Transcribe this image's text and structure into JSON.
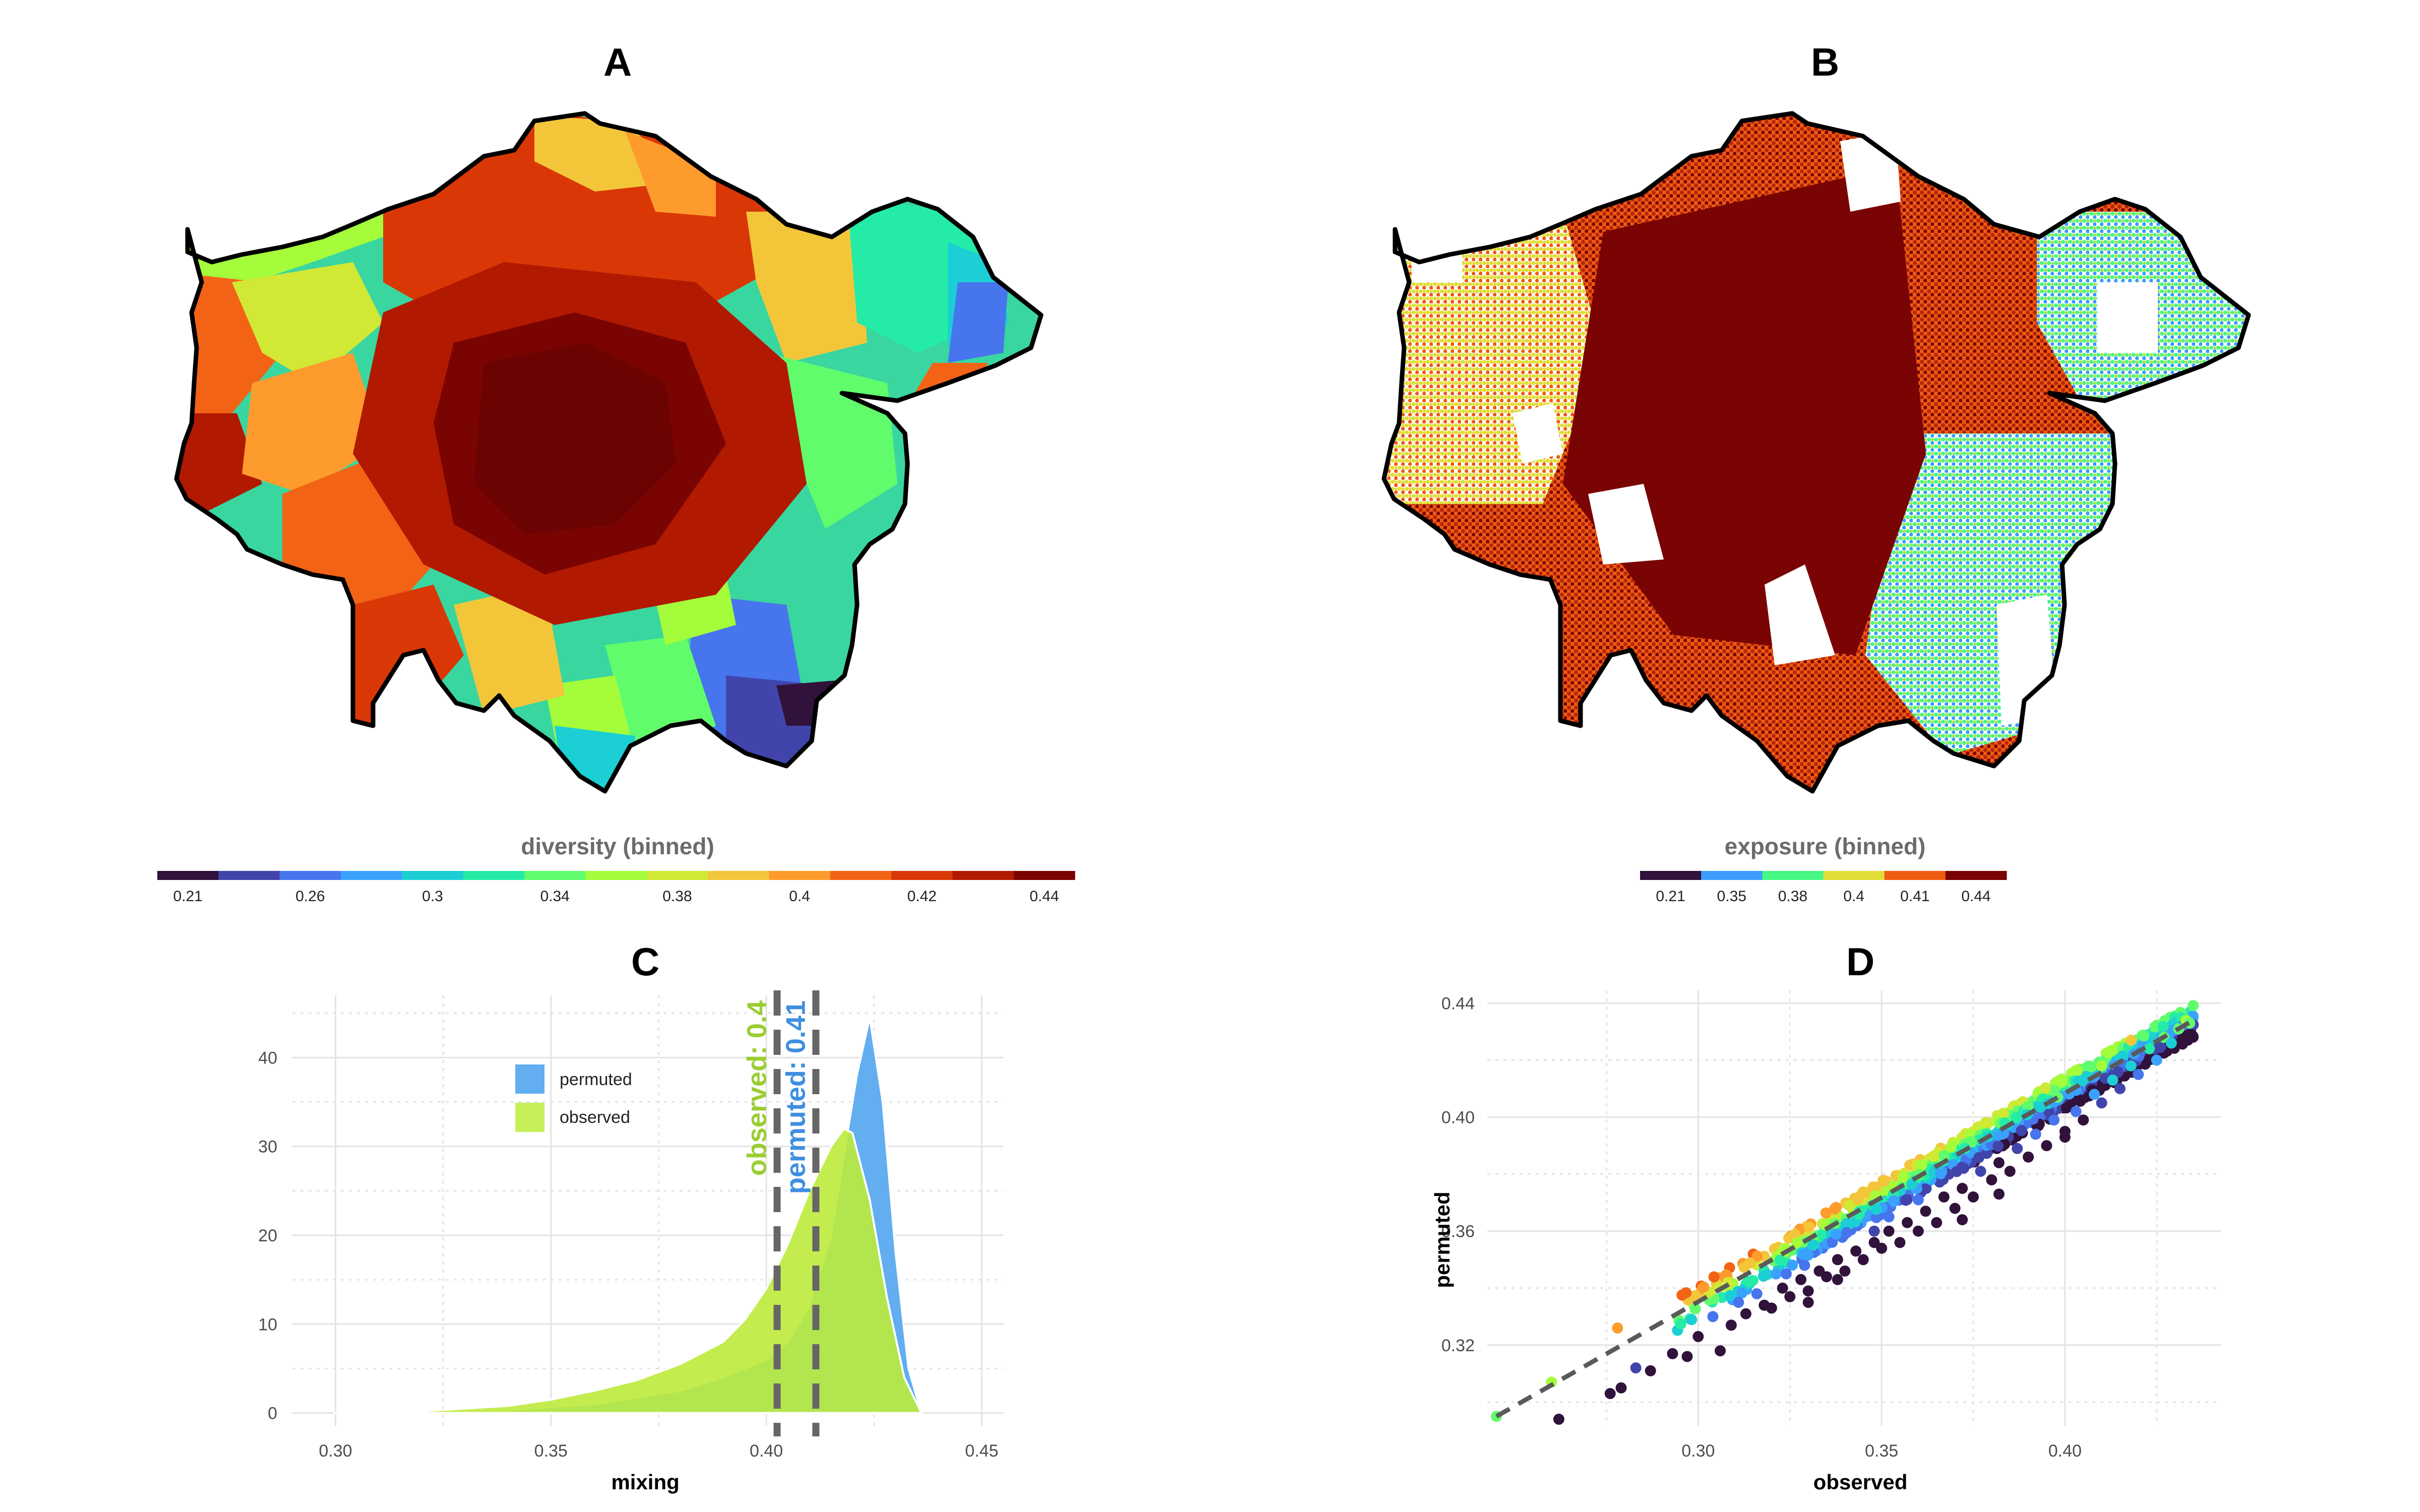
{
  "panels": {
    "A": {
      "title": "A",
      "legend_title": "diversity (binned)",
      "legend_ticks": [
        "0.21",
        "0.26",
        "0.3",
        "0.34",
        "0.38",
        "0.4",
        "0.42",
        "0.44"
      ],
      "legend_colors": [
        "#30123b",
        "#4145ab",
        "#4675ed",
        "#39a2fc",
        "#1bcfd4",
        "#24eca6",
        "#61fc6c",
        "#a4fc3b",
        "#d1e834",
        "#f3c63a",
        "#fe9b2d",
        "#f36315",
        "#d93806",
        "#b11901",
        "#7a0402"
      ]
    },
    "B": {
      "title": "B",
      "legend_title": "exposure (binned)",
      "legend_ticks": [
        "0.21",
        "0.35",
        "0.38",
        "0.4",
        "0.41",
        "0.44"
      ],
      "legend_colors": [
        "#30123b",
        "#3e9bfe",
        "#46f884",
        "#e1dd37",
        "#f05b12",
        "#7a0403"
      ]
    },
    "C": {
      "title": "C"
    },
    "D": {
      "title": "D"
    }
  },
  "chart_data": [
    {
      "type": "area",
      "panel": "C",
      "title": "",
      "xlabel": "mixing",
      "ylabel": "",
      "xlim": [
        0.29,
        0.455
      ],
      "ylim": [
        -1.5,
        47
      ],
      "x_ticks": [
        "0.30",
        "0.35",
        "0.40",
        "0.45"
      ],
      "y_ticks": [
        "0",
        "10",
        "20",
        "30",
        "40"
      ],
      "grid": true,
      "legend_position": "top-left",
      "series": [
        {
          "name": "permuted",
          "color": "#62aef0",
          "x": [
            0.3,
            0.32,
            0.34,
            0.36,
            0.38,
            0.39,
            0.4,
            0.405,
            0.41,
            0.415,
            0.418,
            0.421,
            0.424,
            0.427,
            0.43,
            0.433,
            0.436
          ],
          "y": [
            0,
            0.1,
            0.3,
            1.0,
            2.5,
            4,
            6,
            8,
            12,
            20,
            29,
            38,
            44.5,
            35,
            18,
            5,
            0
          ]
        },
        {
          "name": "observed",
          "color": "#bdeb3c",
          "x": [
            0.3,
            0.32,
            0.34,
            0.35,
            0.36,
            0.37,
            0.38,
            0.39,
            0.395,
            0.4,
            0.405,
            0.41,
            0.415,
            0.418,
            0.42,
            0.424,
            0.428,
            0.432,
            0.436
          ],
          "y": [
            0,
            0.2,
            0.8,
            1.5,
            2.5,
            3.7,
            5.5,
            8,
            10.5,
            14,
            19,
            25,
            30,
            32,
            31.5,
            24,
            13,
            4,
            0
          ]
        }
      ],
      "vlines": [
        {
          "label": "observed: 0.4",
          "x": 0.4025,
          "color": "#9acd32"
        },
        {
          "label": "permuted: 0.41",
          "x": 0.4115,
          "color": "#3f8fe0"
        }
      ]
    },
    {
      "type": "scatter",
      "panel": "D",
      "title": "",
      "xlabel": "observed",
      "ylabel": "permuted",
      "xlim": [
        0.2425,
        0.4425
      ],
      "ylim": [
        0.2915,
        0.4445
      ],
      "x_ticks": [
        "0.30",
        "0.35",
        "0.40"
      ],
      "y_ticks": [
        "0.32",
        "0.36",
        "0.40",
        "0.44"
      ],
      "grid": true,
      "reference_line": {
        "x": [
          0.245,
          0.435
        ],
        "y": [
          0.295,
          0.434
        ]
      },
      "points": [
        [
          0.245,
          0.295
        ],
        [
          0.26,
          0.307
        ],
        [
          0.262,
          0.294
        ],
        [
          0.278,
          0.326
        ],
        [
          0.283,
          0.312
        ],
        [
          0.276,
          0.303
        ],
        [
          0.279,
          0.305
        ],
        [
          0.287,
          0.311
        ],
        [
          0.293,
          0.317
        ],
        [
          0.297,
          0.316
        ],
        [
          0.3,
          0.323
        ],
        [
          0.304,
          0.33
        ],
        [
          0.306,
          0.318
        ],
        [
          0.309,
          0.327
        ],
        [
          0.311,
          0.335
        ],
        [
          0.313,
          0.331
        ],
        [
          0.316,
          0.338
        ],
        [
          0.318,
          0.334
        ],
        [
          0.32,
          0.333
        ],
        [
          0.323,
          0.34
        ],
        [
          0.325,
          0.337
        ],
        [
          0.328,
          0.343
        ],
        [
          0.33,
          0.339
        ],
        [
          0.333,
          0.346
        ],
        [
          0.335,
          0.344
        ],
        [
          0.338,
          0.35
        ],
        [
          0.34,
          0.346
        ],
        [
          0.343,
          0.353
        ],
        [
          0.345,
          0.35
        ],
        [
          0.348,
          0.356
        ],
        [
          0.35,
          0.354
        ],
        [
          0.352,
          0.36
        ],
        [
          0.355,
          0.356
        ],
        [
          0.357,
          0.363
        ],
        [
          0.36,
          0.36
        ],
        [
          0.362,
          0.367
        ],
        [
          0.365,
          0.363
        ],
        [
          0.367,
          0.372
        ],
        [
          0.37,
          0.368
        ],
        [
          0.372,
          0.375
        ],
        [
          0.375,
          0.372
        ],
        [
          0.377,
          0.381
        ],
        [
          0.38,
          0.378
        ],
        [
          0.382,
          0.384
        ],
        [
          0.385,
          0.381
        ],
        [
          0.387,
          0.389
        ],
        [
          0.39,
          0.386
        ],
        [
          0.392,
          0.394
        ],
        [
          0.395,
          0.39
        ],
        [
          0.397,
          0.399
        ],
        [
          0.4,
          0.395
        ],
        [
          0.403,
          0.402
        ],
        [
          0.405,
          0.399
        ],
        [
          0.408,
          0.408
        ],
        [
          0.41,
          0.405
        ],
        [
          0.413,
          0.413
        ],
        [
          0.415,
          0.41
        ],
        [
          0.418,
          0.418
        ],
        [
          0.42,
          0.415
        ],
        [
          0.423,
          0.424
        ],
        [
          0.425,
          0.42
        ],
        [
          0.427,
          0.428
        ],
        [
          0.429,
          0.426
        ],
        [
          0.431,
          0.431
        ],
        [
          0.433,
          0.434
        ],
        [
          0.434,
          0.433
        ],
        [
          0.4,
          0.393
        ],
        [
          0.382,
          0.373
        ],
        [
          0.372,
          0.364
        ],
        [
          0.338,
          0.343
        ],
        [
          0.329,
          0.348
        ],
        [
          0.324,
          0.345
        ],
        [
          0.36,
          0.371
        ],
        [
          0.352,
          0.365
        ],
        [
          0.348,
          0.36
        ],
        [
          0.33,
          0.335
        ],
        [
          0.398,
          0.407
        ],
        [
          0.41,
          0.418
        ],
        [
          0.418,
          0.427
        ]
      ]
    }
  ]
}
